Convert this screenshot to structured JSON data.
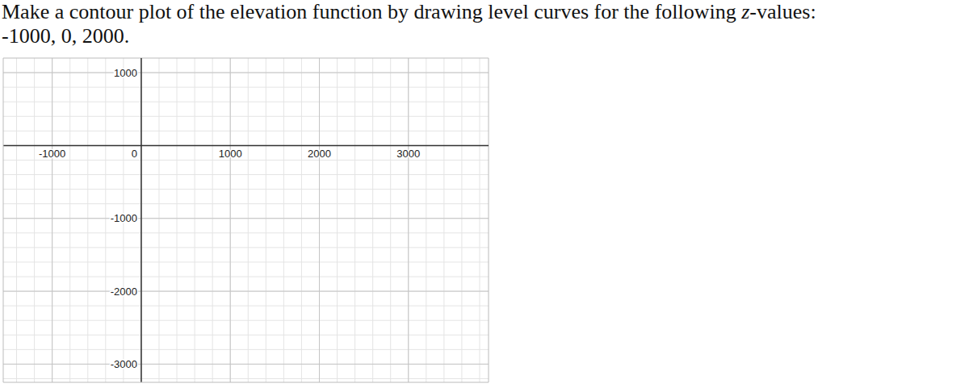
{
  "chart_data": {
    "type": "scatter",
    "title": "Make a contour plot of the elevation function by drawing level curves for the following z-values:",
    "subtitle": "-1000, 0, 2000.",
    "xlim": [
      -1550,
      3900
    ],
    "xticks": [
      -1000,
      0,
      1000,
      2000,
      3000
    ],
    "ylim": [
      -3250,
      1200
    ],
    "yticks": [
      -3000,
      -2000,
      -1000,
      1000
    ],
    "grid": true,
    "values": []
  }
}
